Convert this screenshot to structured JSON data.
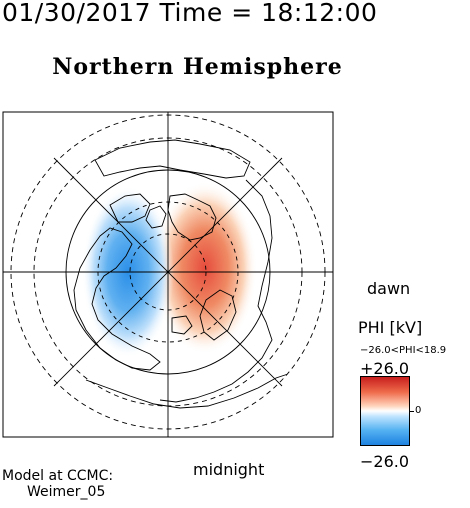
{
  "header": {
    "date": "01/30/2017",
    "time_label": "Time",
    "equals": "=",
    "time": "18:12:00"
  },
  "title": "Northern Hemisphere",
  "map": {
    "projection": "polar stereographic",
    "local_time_labels": {
      "right": "dawn",
      "bottom": "midnight"
    },
    "field_colors": {
      "positive": "#e64b3c",
      "negative": "#2b8fe8",
      "zero": "#ffffff"
    }
  },
  "colorbar": {
    "title": "PHI [kV]",
    "range_text": "−26.0<PHI<18.9",
    "max_label": "+26.0",
    "min_label": "−26.0",
    "zero_label": "0"
  },
  "credit": {
    "line1": "Model at CCMC:",
    "line2": "Weimer_05"
  }
}
